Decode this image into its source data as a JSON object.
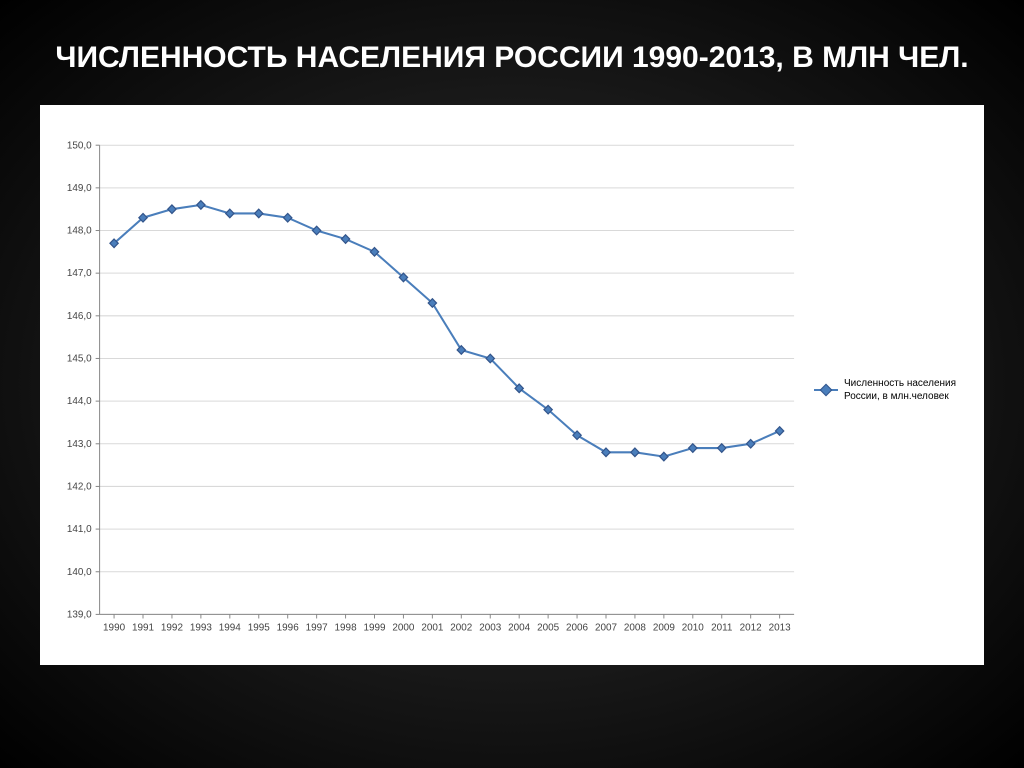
{
  "title": "ЧИСЛЕННОСТЬ НАСЕЛЕНИЯ РОССИИ 1990-2013, В МЛН ЧЕЛ.",
  "chart": {
    "type": "line",
    "background_color": "#ffffff",
    "grid_color": "#d9d9d9",
    "axis_color": "#888888",
    "text_color": "#444444",
    "label_fontsize": 10,
    "title_fontsize": 30,
    "line_color": "#4a7ebb",
    "marker_outline": "#33558b",
    "marker_fill": "#4a7ebb",
    "marker_size": 4.2,
    "line_width": 2,
    "ylim": [
      139.0,
      150.0
    ],
    "ytick_step": 1.0,
    "yticks": [
      "139,0",
      "140,0",
      "141,0",
      "142,0",
      "143,0",
      "144,0",
      "145,0",
      "146,0",
      "147,0",
      "148,0",
      "149,0",
      "150,0"
    ],
    "xcategories": [
      "1990",
      "1991",
      "1992",
      "1993",
      "1994",
      "1995",
      "1996",
      "1997",
      "1998",
      "1999",
      "2000",
      "2001",
      "2002",
      "2003",
      "2004",
      "2005",
      "2006",
      "2007",
      "2008",
      "2009",
      "2010",
      "2011",
      "2012",
      "2013"
    ],
    "series": {
      "name": "Численность населения России, в млн.человек",
      "values": [
        147.7,
        148.3,
        148.5,
        148.6,
        148.4,
        148.4,
        148.3,
        148.0,
        147.8,
        147.5,
        146.9,
        146.3,
        145.2,
        145.0,
        144.3,
        143.8,
        143.2,
        142.8,
        142.8,
        142.7,
        142.9,
        142.9,
        143.0,
        143.3
      ]
    }
  }
}
